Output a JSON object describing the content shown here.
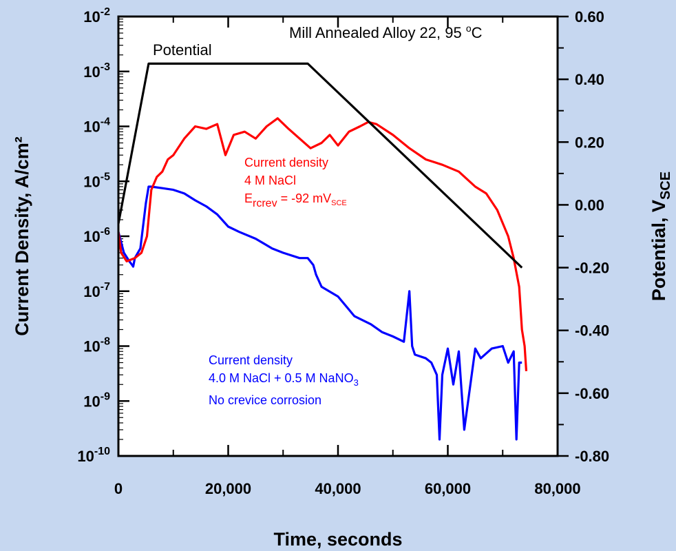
{
  "chart_data": {
    "type": "line",
    "title": "Mill Annealed Alloy 22, 95 °C",
    "xlabel": "Time, seconds",
    "ylabel_left": "Current Density, A/cm²",
    "ylabel_right": "Potential, V",
    "ylabel_right_sub": "SCE",
    "xlim": [
      0,
      80000
    ],
    "ylim_left": [
      1e-10,
      0.01
    ],
    "yscale_left": "log",
    "ylim_right": [
      -0.8,
      0.6
    ],
    "grid": false,
    "x_ticks": [
      {
        "value": 0,
        "label": "0"
      },
      {
        "value": 20000,
        "label": "20,000"
      },
      {
        "value": 40000,
        "label": "40,000"
      },
      {
        "value": 60000,
        "label": "60,000"
      },
      {
        "value": 80000,
        "label": "80,000"
      }
    ],
    "y_left_ticks": [
      {
        "exp": -2,
        "base": "10",
        "sup": "-2"
      },
      {
        "exp": -3,
        "base": "10",
        "sup": "-3"
      },
      {
        "exp": -4,
        "base": "10",
        "sup": "-4"
      },
      {
        "exp": -5,
        "base": "10",
        "sup": "-5"
      },
      {
        "exp": -6,
        "base": "10",
        "sup": "-6"
      },
      {
        "exp": -7,
        "base": "10",
        "sup": "-7"
      },
      {
        "exp": -8,
        "base": "10",
        "sup": "-8"
      },
      {
        "exp": -9,
        "base": "10",
        "sup": "-9"
      },
      {
        "exp": -10,
        "base": "10",
        "sup": "-10"
      }
    ],
    "y_right_ticks": [
      {
        "value": 0.6,
        "label": "0.60"
      },
      {
        "value": 0.4,
        "label": "0.40"
      },
      {
        "value": 0.2,
        "label": "0.20"
      },
      {
        "value": 0.0,
        "label": "0.00"
      },
      {
        "value": -0.2,
        "label": "-0.20"
      },
      {
        "value": -0.4,
        "label": "-0.40"
      },
      {
        "value": -0.6,
        "label": "-0.60"
      },
      {
        "value": -0.8,
        "label": "-0.80"
      }
    ],
    "series": [
      {
        "key": "potential",
        "axis": "right",
        "color": "#000000",
        "label": "Potential",
        "x": [
          0,
          5500,
          34500,
          73500
        ],
        "y": [
          -0.06,
          0.45,
          0.45,
          -0.2
        ]
      },
      {
        "key": "nacl",
        "axis": "left",
        "color": "#ff0000",
        "label_lines": [
          "Current density",
          "4 M NaCl"
        ],
        "label_e": {
          "base": "E",
          "sub": "rcrev",
          "mid": " = -92 mV",
          "sub2": "SCE"
        },
        "x": [
          0,
          500,
          1500,
          3000,
          4200,
          5200,
          6000,
          7000,
          8000,
          9000,
          10000,
          12000,
          14000,
          16000,
          18000,
          19500,
          21000,
          23000,
          25000,
          27000,
          29000,
          31000,
          33000,
          35000,
          37000,
          38500,
          40000,
          42000,
          44000,
          45500,
          47000,
          50000,
          53000,
          56000,
          59000,
          62000,
          65000,
          67000,
          69000,
          71000,
          72000,
          73000,
          73500,
          74000,
          74300
        ],
        "y": [
          1.2e-06,
          5e-07,
          3.5e-07,
          4e-07,
          5e-07,
          1e-06,
          7e-06,
          1.2e-05,
          1.5e-05,
          2.5e-05,
          3e-05,
          6e-05,
          0.0001,
          9e-05,
          0.00011,
          3e-05,
          7e-05,
          8e-05,
          6e-05,
          0.0001,
          0.00014,
          9e-05,
          6e-05,
          4e-05,
          5e-05,
          7e-05,
          4.5e-05,
          8e-05,
          0.0001,
          0.00012,
          0.00011,
          7e-05,
          4e-05,
          2.5e-05,
          2e-05,
          1.5e-05,
          8e-06,
          6e-06,
          3e-06,
          1e-06,
          4e-07,
          1.2e-07,
          2e-08,
          1e-08,
          3.5e-09
        ]
      },
      {
        "key": "nitrate",
        "axis": "left",
        "color": "#0000ff",
        "label_lines": [
          "Current density",
          "4.0 M NaCl + 0.5 M NaNO",
          "No crevice corrosion"
        ],
        "label_sub": "3",
        "x": [
          0,
          1000,
          2000,
          2500,
          2700,
          3000,
          4000,
          5000,
          5500,
          6000,
          8000,
          10000,
          12000,
          14000,
          16000,
          18000,
          20000,
          22000,
          25000,
          28000,
          30000,
          33000,
          34500,
          35500,
          36000,
          37000,
          40000,
          43000,
          46000,
          48000,
          50000,
          52000,
          53000,
          53500,
          54000,
          56000,
          57000,
          58000,
          58500,
          59000,
          60000,
          61000,
          62000,
          63000,
          65000,
          66000,
          68000,
          70000,
          71000,
          72000,
          72500,
          73000,
          73500
        ],
        "y": [
          1.2e-06,
          5e-07,
          3.5e-07,
          3e-07,
          2.8e-07,
          4e-07,
          6e-07,
          4e-06,
          8e-06,
          8e-06,
          7.5e-06,
          7e-06,
          6e-06,
          4.5e-06,
          3.5e-06,
          2.5e-06,
          1.5e-06,
          1.2e-06,
          9e-07,
          6e-07,
          5e-07,
          4e-07,
          4e-07,
          3e-07,
          2e-07,
          1.2e-07,
          8e-08,
          3.5e-08,
          2.5e-08,
          1.8e-08,
          1.5e-08,
          1.2e-08,
          1e-07,
          1e-08,
          7e-09,
          6e-09,
          5e-09,
          3e-09,
          2e-10,
          3e-09,
          9e-09,
          2e-09,
          8e-09,
          3e-10,
          9e-09,
          6e-09,
          9e-09,
          1e-08,
          5e-09,
          8e-09,
          2e-10,
          5e-09,
          5e-09
        ]
      }
    ]
  }
}
